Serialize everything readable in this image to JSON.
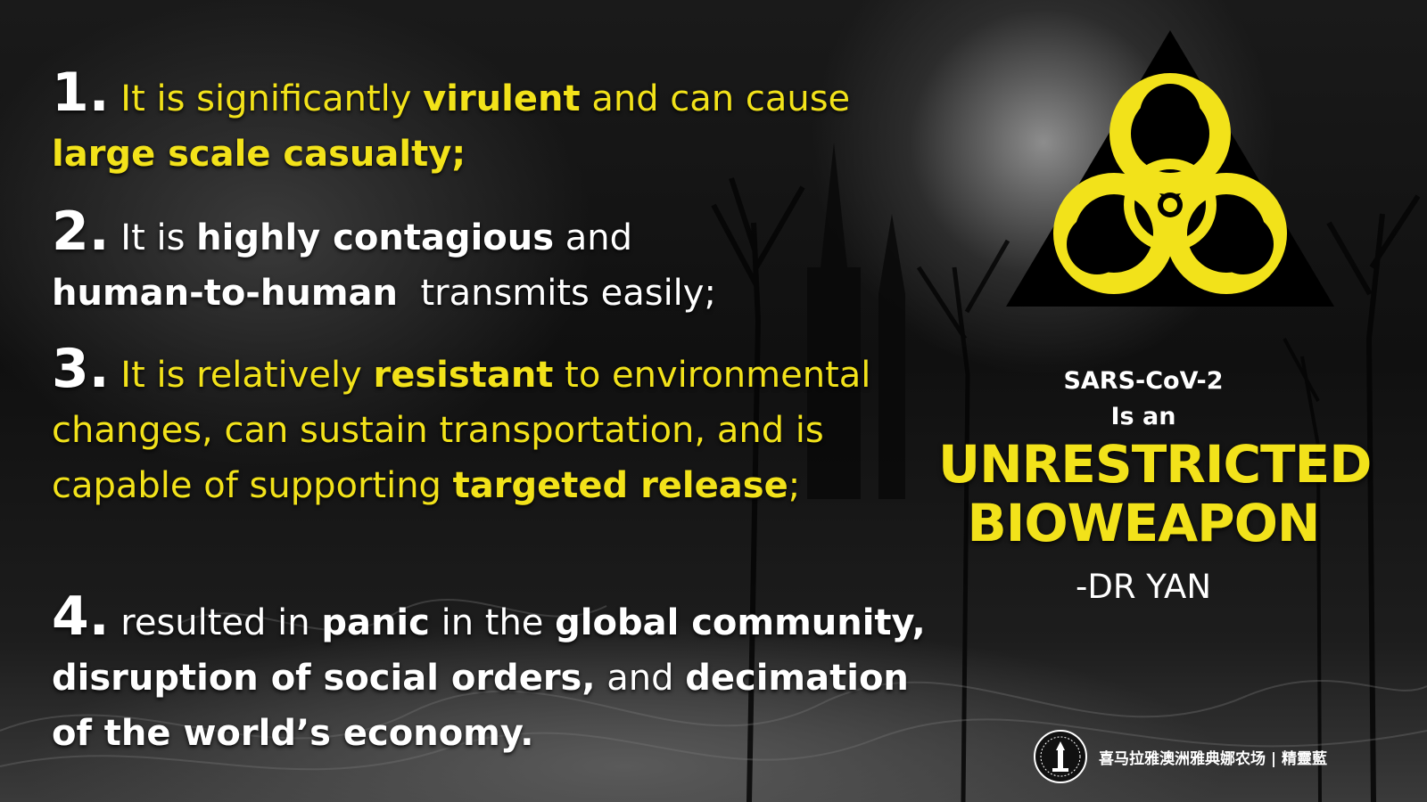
{
  "points": [
    {
      "number": "1.",
      "parts": [
        {
          "text": "It is significantly ",
          "color": "yellow",
          "bold": false
        },
        {
          "text": "virulent",
          "color": "yellow",
          "bold": true
        },
        {
          "text": " and can cause ",
          "color": "yellow",
          "bold": false
        },
        {
          "text": "large scale casualty;",
          "color": "yellow",
          "bold": true
        }
      ]
    },
    {
      "number": "2.",
      "parts": [
        {
          "text": "It is ",
          "color": "white",
          "bold": false
        },
        {
          "text": "highly contagious",
          "color": "white",
          "bold": true
        },
        {
          "text": " and ",
          "color": "white",
          "bold": false
        },
        {
          "text": "human-to-human",
          "color": "white",
          "bold": true
        },
        {
          "text": "transmits easily;",
          "color": "white",
          "bold": false
        }
      ]
    },
    {
      "number": "3.",
      "parts": [
        {
          "text": "It is relatively ",
          "color": "yellow",
          "bold": false
        },
        {
          "text": "resistant",
          "color": "yellow",
          "bold": true
        },
        {
          "text": " to environmental changes, can sustain transportation, and is capable of supporting ",
          "color": "yellow",
          "bold": false
        },
        {
          "text": "targeted release",
          "color": "yellow",
          "bold": true
        },
        {
          "text": ";",
          "color": "yellow",
          "bold": false
        }
      ]
    },
    {
      "number": "4.",
      "parts": [
        {
          "text": "resulted in ",
          "color": "white",
          "bold": false
        },
        {
          "text": "panic",
          "color": "white",
          "bold": true
        },
        {
          "text": " in the ",
          "color": "white",
          "bold": false
        },
        {
          "text": "global community, disruption of social orders,",
          "color": "white",
          "bold": true
        },
        {
          "text": " and ",
          "color": "white",
          "bold": false
        },
        {
          "text": "decimation of the world’s economy.",
          "color": "white",
          "bold": true
        }
      ]
    }
  ],
  "sidebar": {
    "virus_name": "SARS-CoV-2",
    "is_an": "Is an",
    "headline_line1": "UNRESTRICTED",
    "headline_line2": "BIOWEAPON",
    "attribution": "-DR YAN"
  },
  "footer": {
    "text": "喜马拉雅澳洲雅典娜农场 | 精靈藍"
  },
  "icons": {
    "hazard": "biohazard-icon",
    "emblem": "emblem-icon"
  },
  "colors": {
    "accent_yellow": "#f2e21a",
    "text_white": "#ffffff",
    "background": "#141414"
  }
}
